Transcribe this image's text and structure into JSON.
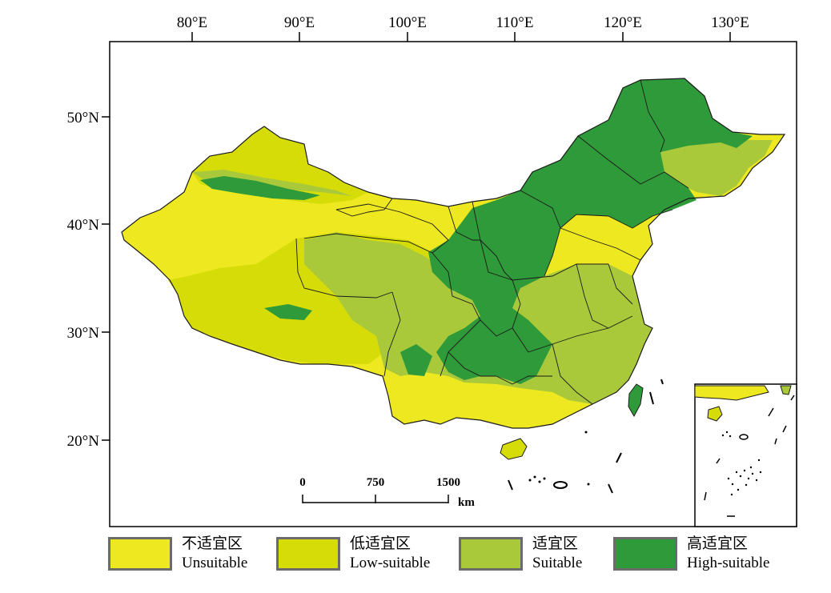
{
  "map": {
    "lon_labels": [
      "80°E",
      "90°E",
      "100°E",
      "110°E",
      "120°E",
      "130°E"
    ],
    "lat_labels": [
      "50°N",
      "40°N",
      "30°N",
      "20°N"
    ],
    "scale_bar": {
      "labels": [
        "0",
        "750",
        "1500"
      ],
      "unit": "km"
    }
  },
  "classes": [
    {
      "cn": "不适宜区",
      "en": "Unsuitable",
      "color": "#ede81f"
    },
    {
      "cn": "低适宜区",
      "en": "Low-suitable",
      "color": "#d6dc08"
    },
    {
      "cn": "适宜区",
      "en": "Suitable",
      "color": "#a9c93a"
    },
    {
      "cn": "高适宜区",
      "en": "High-suitable",
      "color": "#2f9a39"
    }
  ],
  "colors": {
    "border": "#1a1a1a",
    "frame": "#000000",
    "background": "#ffffff"
  }
}
